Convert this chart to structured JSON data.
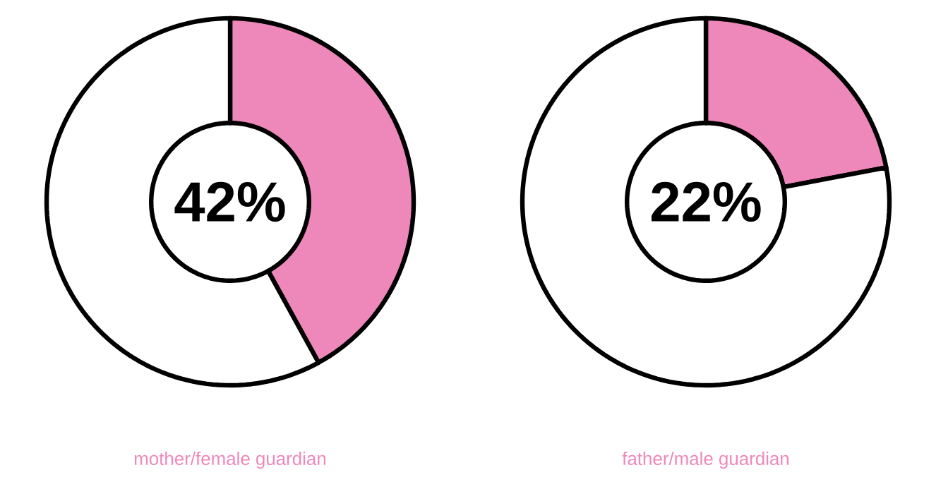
{
  "chart_data": [
    {
      "type": "donut",
      "title": "mother/female guardian",
      "categories": [
        null,
        null
      ],
      "values": [
        42,
        58
      ],
      "colors": [
        "#ee88bb",
        "#ffffff"
      ],
      "annotations": [
        "42%"
      ]
    },
    {
      "type": "donut",
      "title": "father/male guardian",
      "categories": [
        null,
        null
      ],
      "values": [
        22,
        78
      ],
      "colors": [
        "#ee88bb",
        "#ffffff"
      ],
      "annotations": [
        "22%"
      ]
    }
  ]
}
